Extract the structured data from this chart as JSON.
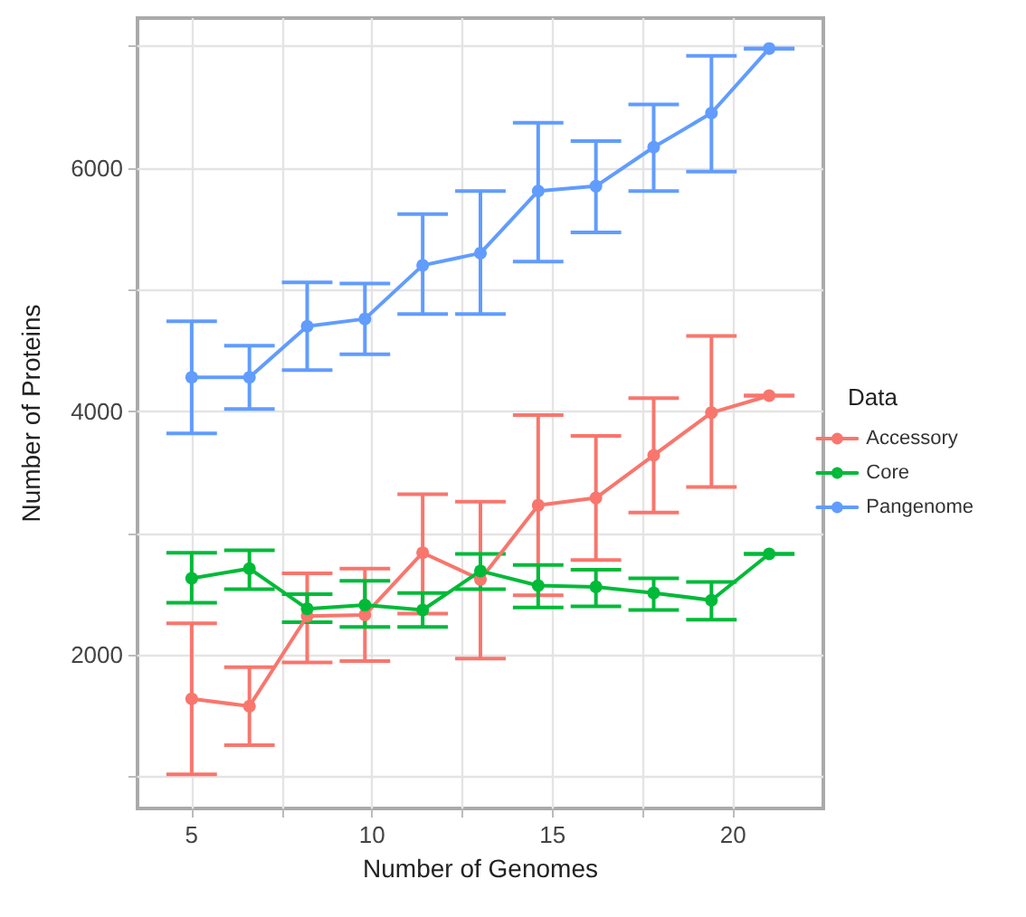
{
  "chart_data": {
    "type": "line",
    "xlabel": "Number of Genomes",
    "ylabel": "Number of Proteins",
    "legend_title": "Data",
    "legend": "right",
    "grid": true,
    "marker": "circle",
    "line_style": "solid",
    "x": [
      5,
      6.6,
      8.2,
      9.8,
      11.4,
      13,
      14.6,
      16.2,
      17.8,
      19.4,
      21
    ],
    "xlim": [
      3.5,
      22.5
    ],
    "xticks": [
      5,
      {
        "value": 7.5,
        "label": null
      },
      10,
      {
        "value": 12.5,
        "label": null
      },
      15,
      {
        "value": 17.5,
        "label": null
      },
      20
    ],
    "ylim": [
      740,
      7230
    ],
    "yticks": [
      {
        "value": 1000,
        "label": null
      },
      2000,
      {
        "value": 3000,
        "label": null
      },
      4000,
      {
        "value": 5000,
        "label": null
      },
      6000,
      {
        "value": 7000,
        "label": null
      }
    ],
    "series": [
      {
        "name": "Accessory",
        "color": "#f8766d",
        "values": [
          1640,
          1580,
          2320,
          2330,
          2840,
          2620,
          3230,
          3290,
          3640,
          3990,
          4130
        ],
        "errors": [
          [
            1020,
            2260
          ],
          [
            1260,
            1900
          ],
          [
            1940,
            2670
          ],
          [
            1950,
            2710
          ],
          [
            2340,
            3320
          ],
          [
            1970,
            3260
          ],
          [
            2490,
            3970
          ],
          [
            2780,
            3800
          ],
          [
            3170,
            4110
          ],
          [
            3380,
            4620
          ],
          [
            4130,
            4130
          ]
        ]
      },
      {
        "name": "Core",
        "color": "#00ba38",
        "values": [
          2630,
          2710,
          2380,
          2410,
          2370,
          2690,
          2570,
          2560,
          2510,
          2450,
          2830
        ],
        "errors": [
          [
            2430,
            2840
          ],
          [
            2540,
            2860
          ],
          [
            2270,
            2500
          ],
          [
            2230,
            2610
          ],
          [
            2230,
            2510
          ],
          [
            2540,
            2830
          ],
          [
            2390,
            2740
          ],
          [
            2400,
            2700
          ],
          [
            2370,
            2630
          ],
          [
            2290,
            2600
          ],
          [
            2830,
            2830
          ]
        ]
      },
      {
        "name": "Pangenome",
        "color": "#619cff",
        "values": [
          4280,
          4280,
          4700,
          4760,
          5200,
          5300,
          5810,
          5850,
          6170,
          6450,
          6980
        ],
        "errors": [
          [
            3820,
            4740
          ],
          [
            4020,
            4540
          ],
          [
            4340,
            5060
          ],
          [
            4470,
            5050
          ],
          [
            4800,
            5620
          ],
          [
            4800,
            5810
          ],
          [
            5230,
            6370
          ],
          [
            5470,
            6220
          ],
          [
            5810,
            6520
          ],
          [
            5970,
            6920
          ],
          [
            6980,
            6980
          ]
        ]
      }
    ]
  }
}
